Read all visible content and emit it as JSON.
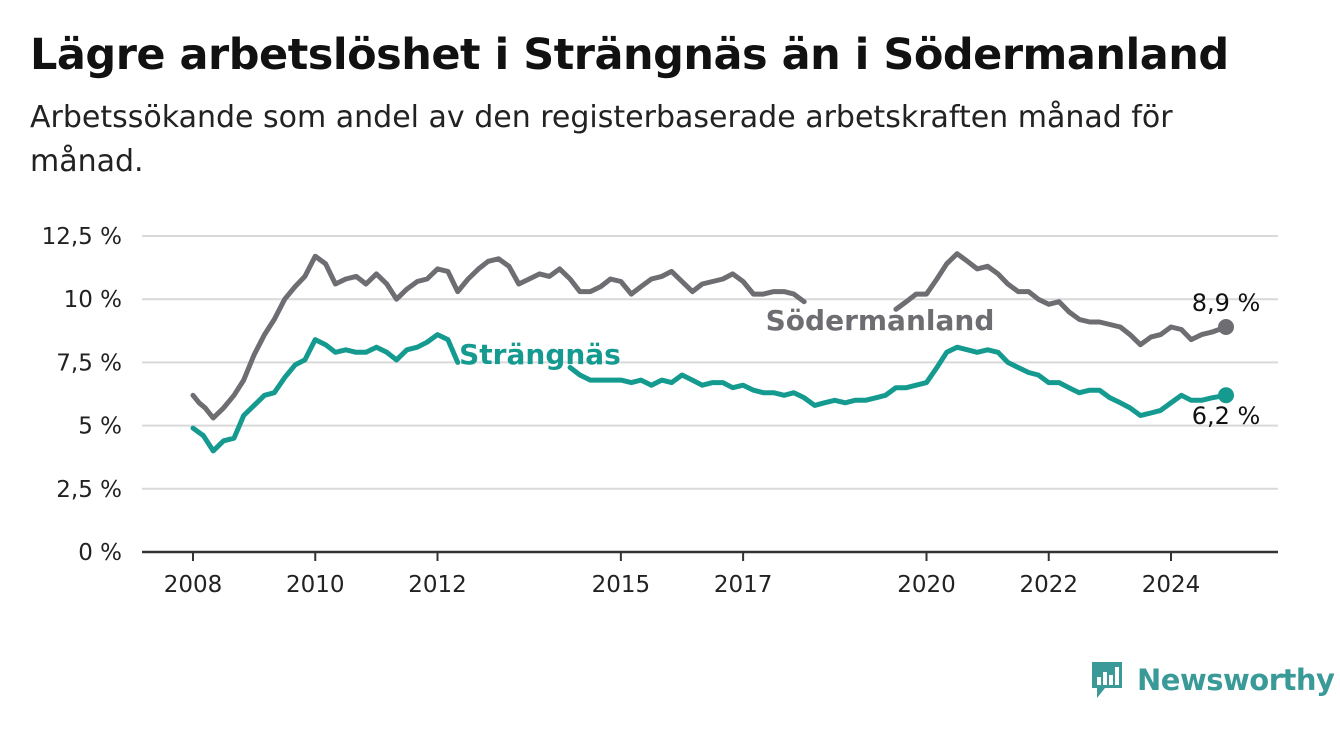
{
  "title": "Lägre arbetslöshet i Strängnäs än i Södermanland",
  "subtitle": "Arbetssökande som andel av den registerbaserade arbetskraften månad för månad.",
  "brand": {
    "name": "Newsworthy",
    "color": "#3a9a98"
  },
  "chart_data": {
    "type": "line",
    "title": "Lägre arbetslöshet i Strängnäs än i Södermanland",
    "subtitle": "Arbetssökande som andel av den registerbaserade arbetskraften månad för månad.",
    "xlabel": "",
    "ylabel": "",
    "grid": true,
    "ylim": [
      0,
      12.5
    ],
    "xlim": [
      2008.0,
      2024.9
    ],
    "y_ticks": [
      0,
      2.5,
      5,
      7.5,
      10,
      12.5
    ],
    "y_tick_labels": [
      "0 %",
      "2,5 %",
      "5 %",
      "7,5 %",
      "10 %",
      "12,5 %"
    ],
    "x_ticks": [
      2008,
      2010,
      2012,
      2015,
      2017,
      2020,
      2022,
      2024
    ],
    "x_tick_labels": [
      "2008",
      "2010",
      "2012",
      "2015",
      "2017",
      "2020",
      "2022",
      "2024"
    ],
    "series": [
      {
        "name": "Södermanland",
        "color": "#6e6d72",
        "end_label": "8,9 %",
        "points": [
          [
            2008.0,
            6.2
          ],
          [
            2008.1,
            5.9
          ],
          [
            2008.2,
            5.7
          ],
          [
            2008.33,
            5.3
          ],
          [
            2008.5,
            5.7
          ],
          [
            2008.67,
            6.2
          ],
          [
            2008.83,
            6.8
          ],
          [
            2009.0,
            7.8
          ],
          [
            2009.17,
            8.6
          ],
          [
            2009.33,
            9.2
          ],
          [
            2009.5,
            10.0
          ],
          [
            2009.67,
            10.5
          ],
          [
            2009.83,
            10.9
          ],
          [
            2010.0,
            11.7
          ],
          [
            2010.17,
            11.4
          ],
          [
            2010.33,
            10.6
          ],
          [
            2010.5,
            10.8
          ],
          [
            2010.67,
            10.9
          ],
          [
            2010.83,
            10.6
          ],
          [
            2011.0,
            11.0
          ],
          [
            2011.17,
            10.6
          ],
          [
            2011.33,
            10.0
          ],
          [
            2011.5,
            10.4
          ],
          [
            2011.67,
            10.7
          ],
          [
            2011.83,
            10.8
          ],
          [
            2012.0,
            11.2
          ],
          [
            2012.17,
            11.1
          ],
          [
            2012.33,
            10.3
          ],
          [
            2012.5,
            10.8
          ],
          [
            2012.67,
            11.2
          ],
          [
            2012.83,
            11.5
          ],
          [
            2013.0,
            11.6
          ],
          [
            2013.17,
            11.3
          ],
          [
            2013.33,
            10.6
          ],
          [
            2013.5,
            10.8
          ],
          [
            2013.67,
            11.0
          ],
          [
            2013.83,
            10.9
          ],
          [
            2014.0,
            11.2
          ],
          [
            2014.17,
            10.8
          ],
          [
            2014.33,
            10.3
          ],
          [
            2014.5,
            10.3
          ],
          [
            2014.67,
            10.5
          ],
          [
            2014.83,
            10.8
          ],
          [
            2015.0,
            10.7
          ],
          [
            2015.17,
            10.2
          ],
          [
            2015.33,
            10.5
          ],
          [
            2015.5,
            10.8
          ],
          [
            2015.67,
            10.9
          ],
          [
            2015.83,
            11.1
          ],
          [
            2016.0,
            10.7
          ],
          [
            2016.17,
            10.3
          ],
          [
            2016.33,
            10.6
          ],
          [
            2016.5,
            10.7
          ],
          [
            2016.67,
            10.8
          ],
          [
            2016.83,
            11.0
          ],
          [
            2017.0,
            10.7
          ],
          [
            2017.17,
            10.2
          ],
          [
            2017.33,
            10.2
          ],
          [
            2017.5,
            10.3
          ],
          [
            2017.67,
            10.3
          ],
          [
            2017.83,
            10.2
          ],
          [
            2018.0,
            9.9
          ],
          null,
          [
            2019.5,
            9.6
          ],
          [
            2019.67,
            9.9
          ],
          [
            2019.83,
            10.2
          ],
          [
            2020.0,
            10.2
          ],
          [
            2020.17,
            10.8
          ],
          [
            2020.33,
            11.4
          ],
          [
            2020.5,
            11.8
          ],
          [
            2020.67,
            11.5
          ],
          [
            2020.83,
            11.2
          ],
          [
            2021.0,
            11.3
          ],
          [
            2021.17,
            11.0
          ],
          [
            2021.33,
            10.6
          ],
          [
            2021.5,
            10.3
          ],
          [
            2021.67,
            10.3
          ],
          [
            2021.83,
            10.0
          ],
          [
            2022.0,
            9.8
          ],
          [
            2022.17,
            9.9
          ],
          [
            2022.33,
            9.5
          ],
          [
            2022.5,
            9.2
          ],
          [
            2022.67,
            9.1
          ],
          [
            2022.83,
            9.1
          ],
          [
            2023.0,
            9.0
          ],
          [
            2023.17,
            8.9
          ],
          [
            2023.33,
            8.6
          ],
          [
            2023.5,
            8.2
          ],
          [
            2023.67,
            8.5
          ],
          [
            2023.83,
            8.6
          ],
          [
            2024.0,
            8.9
          ],
          [
            2024.17,
            8.8
          ],
          [
            2024.33,
            8.4
          ],
          [
            2024.5,
            8.6
          ],
          [
            2024.67,
            8.7
          ],
          [
            2024.9,
            8.9
          ]
        ]
      },
      {
        "name": "Strängnäs",
        "color": "#159a90",
        "end_label": "6,2 %",
        "points": [
          [
            2008.0,
            4.9
          ],
          [
            2008.17,
            4.6
          ],
          [
            2008.33,
            4.0
          ],
          [
            2008.5,
            4.4
          ],
          [
            2008.67,
            4.5
          ],
          [
            2008.83,
            5.4
          ],
          [
            2009.0,
            5.8
          ],
          [
            2009.17,
            6.2
          ],
          [
            2009.33,
            6.3
          ],
          [
            2009.5,
            6.9
          ],
          [
            2009.67,
            7.4
          ],
          [
            2009.83,
            7.6
          ],
          [
            2010.0,
            8.4
          ],
          [
            2010.17,
            8.2
          ],
          [
            2010.33,
            7.9
          ],
          [
            2010.5,
            8.0
          ],
          [
            2010.67,
            7.9
          ],
          [
            2010.83,
            7.9
          ],
          [
            2011.0,
            8.1
          ],
          [
            2011.17,
            7.9
          ],
          [
            2011.33,
            7.6
          ],
          [
            2011.5,
            8.0
          ],
          [
            2011.67,
            8.1
          ],
          [
            2011.83,
            8.3
          ],
          [
            2012.0,
            8.6
          ],
          [
            2012.17,
            8.4
          ],
          [
            2012.33,
            7.5
          ],
          null,
          [
            2014.17,
            7.3
          ],
          [
            2014.33,
            7.0
          ],
          [
            2014.5,
            6.8
          ],
          [
            2014.67,
            6.8
          ],
          [
            2014.83,
            6.8
          ],
          [
            2015.0,
            6.8
          ],
          [
            2015.17,
            6.7
          ],
          [
            2015.33,
            6.8
          ],
          [
            2015.5,
            6.6
          ],
          [
            2015.67,
            6.8
          ],
          [
            2015.83,
            6.7
          ],
          [
            2016.0,
            7.0
          ],
          [
            2016.17,
            6.8
          ],
          [
            2016.33,
            6.6
          ],
          [
            2016.5,
            6.7
          ],
          [
            2016.67,
            6.7
          ],
          [
            2016.83,
            6.5
          ],
          [
            2017.0,
            6.6
          ],
          [
            2017.17,
            6.4
          ],
          [
            2017.33,
            6.3
          ],
          [
            2017.5,
            6.3
          ],
          [
            2017.67,
            6.2
          ],
          [
            2017.83,
            6.3
          ],
          [
            2018.0,
            6.1
          ],
          [
            2018.17,
            5.8
          ],
          [
            2018.33,
            5.9
          ],
          [
            2018.5,
            6.0
          ],
          [
            2018.67,
            5.9
          ],
          [
            2018.83,
            6.0
          ],
          [
            2019.0,
            6.0
          ],
          [
            2019.17,
            6.1
          ],
          [
            2019.33,
            6.2
          ],
          [
            2019.5,
            6.5
          ],
          [
            2019.67,
            6.5
          ],
          [
            2019.83,
            6.6
          ],
          [
            2020.0,
            6.7
          ],
          [
            2020.17,
            7.3
          ],
          [
            2020.33,
            7.9
          ],
          [
            2020.5,
            8.1
          ],
          [
            2020.67,
            8.0
          ],
          [
            2020.83,
            7.9
          ],
          [
            2021.0,
            8.0
          ],
          [
            2021.17,
            7.9
          ],
          [
            2021.33,
            7.5
          ],
          [
            2021.5,
            7.3
          ],
          [
            2021.67,
            7.1
          ],
          [
            2021.83,
            7.0
          ],
          [
            2022.0,
            6.7
          ],
          [
            2022.17,
            6.7
          ],
          [
            2022.33,
            6.5
          ],
          [
            2022.5,
            6.3
          ],
          [
            2022.67,
            6.4
          ],
          [
            2022.83,
            6.4
          ],
          [
            2023.0,
            6.1
          ],
          [
            2023.17,
            5.9
          ],
          [
            2023.33,
            5.7
          ],
          [
            2023.5,
            5.4
          ],
          [
            2023.67,
            5.5
          ],
          [
            2023.83,
            5.6
          ],
          [
            2024.0,
            5.9
          ],
          [
            2024.17,
            6.2
          ],
          [
            2024.33,
            6.0
          ],
          [
            2024.5,
            6.0
          ],
          [
            2024.67,
            6.1
          ],
          [
            2024.9,
            6.2
          ]
        ]
      }
    ]
  }
}
